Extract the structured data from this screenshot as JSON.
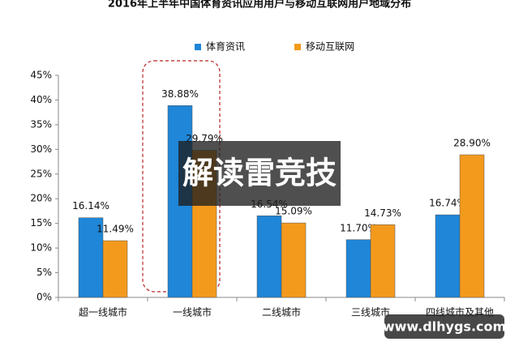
{
  "chart_data": {
    "type": "bar",
    "title": "2016年上半年中国体育资讯应用用户与移动互联网用户地域分布",
    "categories": [
      "超一线城市",
      "一线城市",
      "二线城市",
      "三线城市",
      "四线城市及其他"
    ],
    "series": [
      {
        "name": "体育资讯",
        "color": "#1f86d8",
        "values": [
          16.14,
          38.88,
          16.54,
          11.7,
          16.74
        ],
        "value_labels": [
          "16.14%",
          "38.88%",
          "16.54%",
          "11.70%",
          "16.74%"
        ]
      },
      {
        "name": "移动互联网",
        "color": "#f39a1d",
        "values": [
          11.49,
          29.79,
          15.09,
          14.73,
          28.9
        ],
        "value_labels": [
          "11.49%",
          "29.79%",
          "15.09%",
          "14.73%",
          "28.90%"
        ]
      }
    ],
    "ylim": [
      0,
      45
    ],
    "yticks": [
      {
        "value": 0,
        "label": "0%"
      },
      {
        "value": 5,
        "label": "5%"
      },
      {
        "value": 10,
        "label": "10%"
      },
      {
        "value": 15,
        "label": "15%"
      },
      {
        "value": 20,
        "label": "20%"
      },
      {
        "value": 25,
        "label": "25%"
      },
      {
        "value": 30,
        "label": "30%"
      },
      {
        "value": 35,
        "label": "35%"
      },
      {
        "value": 40,
        "label": "40%"
      },
      {
        "value": 45,
        "label": "45%"
      }
    ],
    "grid": false,
    "overlay_text": "解读雷竞技",
    "site_watermark": "www.dlhygs.com"
  }
}
